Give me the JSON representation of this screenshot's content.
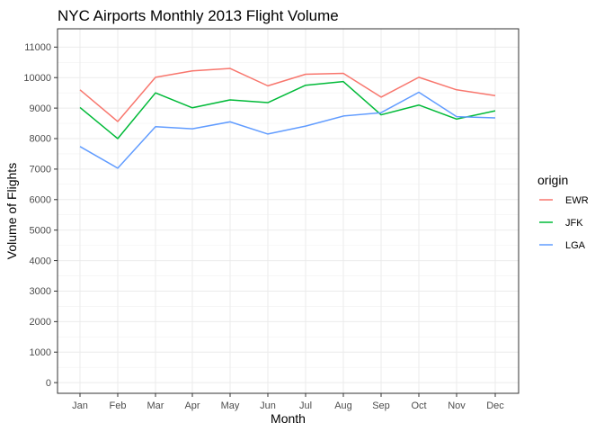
{
  "chart_data": {
    "type": "line",
    "title": "NYC Airports Monthly 2013 Flight Volume",
    "xlabel": "Month",
    "ylabel": "Volume of Flights",
    "categories": [
      "Jan",
      "Feb",
      "Mar",
      "Apr",
      "May",
      "Jun",
      "Jul",
      "Aug",
      "Sep",
      "Oct",
      "Nov",
      "Dec"
    ],
    "ylim": [
      -350,
      11600
    ],
    "yticks": [
      0,
      1000,
      2000,
      3000,
      4000,
      5000,
      6000,
      7000,
      8000,
      9000,
      10000,
      11000
    ],
    "grid": true,
    "legend": {
      "title": "origin",
      "placement": "right"
    },
    "series": [
      {
        "name": "EWR",
        "color": "#F8766D",
        "values": [
          9600,
          8560,
          10010,
          10220,
          10300,
          9730,
          10110,
          10140,
          9360,
          10010,
          9600,
          9410
        ]
      },
      {
        "name": "JFK",
        "color": "#00BA38",
        "values": [
          9020,
          8000,
          9500,
          9010,
          9270,
          9180,
          9750,
          9870,
          8780,
          9100,
          8640,
          8910
        ]
      },
      {
        "name": "LGA",
        "color": "#619CFF",
        "values": [
          7740,
          7030,
          8390,
          8320,
          8550,
          8150,
          8410,
          8740,
          8850,
          9520,
          8720,
          8680
        ]
      }
    ]
  }
}
